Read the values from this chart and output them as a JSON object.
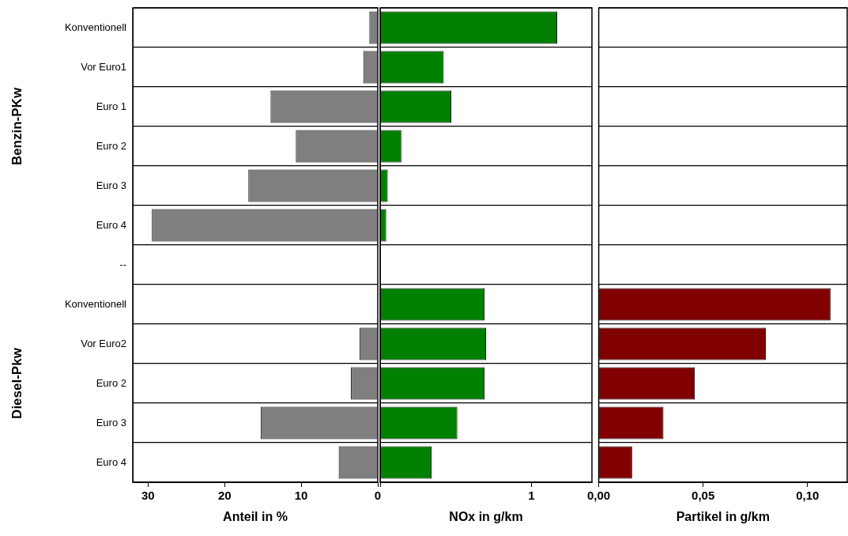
{
  "chart_data": [
    {
      "type": "bar",
      "orientation": "horizontal",
      "xlabel": "Anteil in %",
      "categories": [
        "Konventionell",
        "Vor Euro1",
        "Euro 1",
        "Euro 2",
        "Euro 3",
        "Euro 4",
        "--",
        "Konventionell",
        "Vor Euro2",
        "Euro 2",
        "Euro 3",
        "Euro 4"
      ],
      "series": [
        {
          "color": "#7f7f7f",
          "values": [
            1.1,
            1.9,
            14.0,
            10.7,
            16.9,
            29.5,
            null,
            null,
            2.4,
            3.5,
            15.3,
            5.1
          ]
        }
      ],
      "xlim": [
        32,
        0
      ],
      "xticks": [
        0,
        10,
        20,
        30
      ],
      "grid": "y",
      "annotations": [
        "Benzin-PKw",
        "Diesel-Pkw"
      ]
    },
    {
      "type": "bar",
      "orientation": "horizontal",
      "xlabel": "NOx in g/km",
      "categories": [
        null,
        null,
        null,
        null,
        null,
        null,
        null,
        null,
        null,
        null,
        null,
        null
      ],
      "series": [
        {
          "color": "#008000",
          "values": [
            1.17,
            0.42,
            0.47,
            0.14,
            0.05,
            0.04,
            null,
            0.69,
            0.7,
            0.69,
            0.51,
            0.34
          ]
        }
      ],
      "xlim": [
        0,
        1.4
      ],
      "xticks": [
        {
          "value": 0,
          "label": null
        },
        1
      ],
      "grid": "y",
      "tick_labels": "x"
    },
    {
      "type": "bar",
      "orientation": "horizontal",
      "xlabel": "Partikel in g/km",
      "categories": [
        null,
        null,
        null,
        null,
        null,
        null,
        null,
        null,
        null,
        null,
        null,
        null
      ],
      "series": [
        {
          "color": "#800000",
          "values": [
            null,
            null,
            null,
            null,
            null,
            null,
            null,
            0.111,
            0.08,
            0.046,
            0.031,
            0.016
          ]
        }
      ],
      "xlim": [
        0,
        0.119
      ],
      "xticks": [
        {
          "value": 0,
          "label": "0,00"
        },
        {
          "value": 0.05,
          "label": "0,05"
        },
        {
          "value": 0.1,
          "label": "0,10"
        }
      ],
      "grid": "y",
      "tick_labels": "x"
    }
  ]
}
